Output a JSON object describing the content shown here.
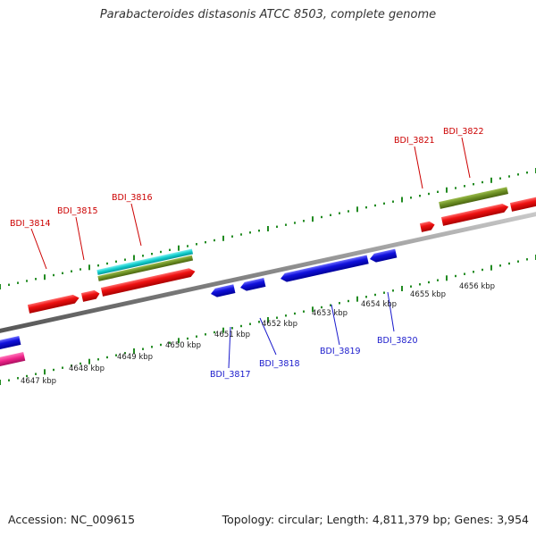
{
  "title": "Parabacteroides distasonis ATCC 8503, complete genome",
  "footer": {
    "accession": "Accession: NC_009615",
    "info": "Topology: circular; Length: 4,811,379 bp; Genes: 3,954"
  },
  "colors": {
    "forward": "#ee1111",
    "reverse": "#1111dd",
    "olive": "#6b8e23",
    "cyan": "#11cccc",
    "pink": "#ee2288",
    "tick": "#228b22",
    "backbone": "#888888"
  },
  "tick_labels": [
    "4647 kbp",
    "4648 kbp",
    "4649 kbp",
    "4650 kbp",
    "4651 kbp",
    "4652 kbp",
    "4653 kbp",
    "4654 kbp",
    "4655 kbp",
    "4656 kbp"
  ],
  "genes_top": [
    "BDI_3814",
    "BDI_3815",
    "BDI_3816",
    "BDI_3821",
    "BDI_3822"
  ],
  "genes_bottom": [
    "BDI_3817",
    "BDI_3818",
    "BDI_3819",
    "BDI_3820"
  ]
}
